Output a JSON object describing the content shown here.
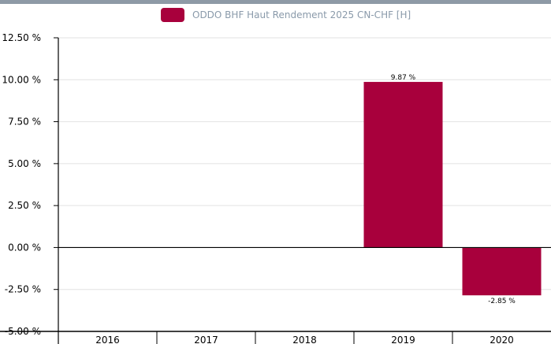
{
  "legend": {
    "label": "ODDO BHF Haut Rendement 2025 CN-CHF [H]"
  },
  "colors": {
    "bar": "#a8003c",
    "top_bar": "#8e9aa6",
    "legend_text": "#8a9aaa",
    "grid": "#e2e2e2"
  },
  "chart_data": {
    "type": "bar",
    "categories": [
      "2016",
      "2017",
      "2018",
      "2019",
      "2020"
    ],
    "series": [
      {
        "name": "ODDO BHF Haut Rendement 2025 CN-CHF [H]",
        "values": [
          null,
          null,
          null,
          9.87,
          -2.85
        ]
      }
    ],
    "data_labels": [
      "",
      "",
      "",
      "9.87 %",
      "-2.85 %"
    ],
    "ylim": [
      -5.0,
      12.5
    ],
    "yticks": [
      12.5,
      10.0,
      7.5,
      5.0,
      2.5,
      0.0,
      -2.5,
      -5.0
    ],
    "ytick_labels": [
      "12.50 %",
      "10.00 %",
      "7.50 %",
      "5.00 %",
      "2.50 %",
      "0.00 %",
      "-2.50 %",
      "-5.00 %"
    ],
    "grid": true,
    "legend_position": "top"
  }
}
